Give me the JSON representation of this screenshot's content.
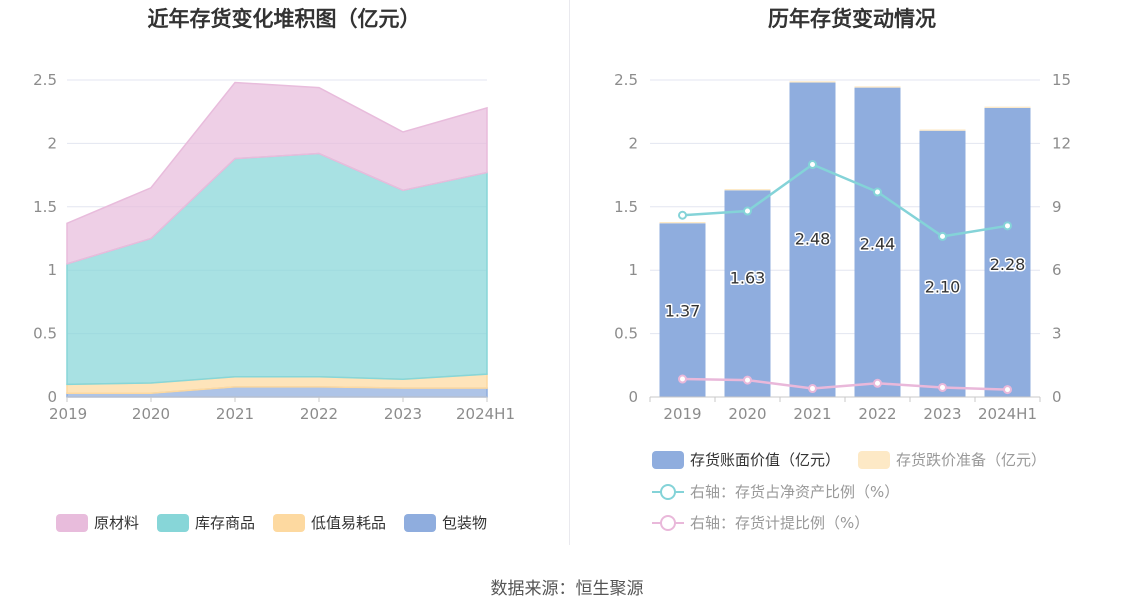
{
  "source_text": "数据来源：恒生聚源",
  "colors": {
    "raw_material": "#e8bcdc",
    "inventory_goods": "#87d6d8",
    "low_value": "#fdd9a0",
    "packaging": "#8fadde",
    "bar_book": "#8fadde",
    "bar_reserve": "#fde9c6",
    "line_ratio": "#84d3d8",
    "line_provision": "#e9b8da",
    "grid": "#e3e6f0",
    "axis": "#c8c8c8"
  },
  "chart_data": [
    {
      "type": "area",
      "title": "近年存货变化堆积图（亿元）",
      "categories": [
        "2019",
        "2020",
        "2021",
        "2022",
        "2023",
        "2024H1"
      ],
      "ylim": [
        0,
        2.5
      ],
      "yticks": [
        "0",
        "0.5",
        "1",
        "1.5",
        "2",
        "2.5"
      ],
      "stacked": true,
      "series": [
        {
          "name": "包装物",
          "color_key": "packaging",
          "values": [
            0.03,
            0.03,
            0.08,
            0.08,
            0.07,
            0.07
          ]
        },
        {
          "name": "低值易耗品",
          "color_key": "low_value",
          "values": [
            0.07,
            0.08,
            0.08,
            0.08,
            0.07,
            0.11
          ]
        },
        {
          "name": "库存商品",
          "color_key": "inventory_goods",
          "values": [
            0.95,
            1.14,
            1.72,
            1.76,
            1.49,
            1.59
          ]
        },
        {
          "name": "原材料",
          "color_key": "raw_material",
          "values": [
            0.32,
            0.4,
            0.6,
            0.52,
            0.46,
            0.51
          ]
        }
      ],
      "legend": [
        "原材料",
        "库存商品",
        "低值易耗品",
        "包装物"
      ],
      "legend_position": "bottom",
      "grid": true
    },
    {
      "type": "bar",
      "title": "历年存货变动情况",
      "categories": [
        "2019",
        "2020",
        "2021",
        "2022",
        "2023",
        "2024H1"
      ],
      "ylim": [
        0,
        2.5
      ],
      "yticks": [
        "0",
        "0.5",
        "1",
        "1.5",
        "2",
        "2.5"
      ],
      "y2lim": [
        0,
        15
      ],
      "y2ticks": [
        "0",
        "3",
        "6",
        "9",
        "12",
        "15"
      ],
      "series": [
        {
          "name": "存货账面价值（亿元）",
          "type": "bar",
          "axis": "left",
          "color_key": "bar_book",
          "values": [
            1.37,
            1.63,
            2.48,
            2.44,
            2.1,
            2.28
          ],
          "labels": [
            "1.37",
            "1.63",
            "2.48",
            "2.44",
            "2.10",
            "2.28"
          ]
        },
        {
          "name": "存货跌价准备（亿元）",
          "type": "bar",
          "axis": "left",
          "color_key": "bar_reserve",
          "values": [
            0.01,
            0.01,
            0.01,
            0.01,
            0.01,
            0.01
          ]
        },
        {
          "name": "右轴：存货占净资产比例（%）",
          "type": "line",
          "axis": "right",
          "color_key": "line_ratio",
          "values": [
            8.6,
            8.8,
            11.0,
            9.7,
            7.6,
            8.1
          ]
        },
        {
          "name": "右轴：存货计提比例（%）",
          "type": "line",
          "axis": "right",
          "color_key": "line_provision",
          "values": [
            0.85,
            0.8,
            0.4,
            0.65,
            0.45,
            0.35
          ]
        }
      ],
      "legend_position": "bottom",
      "grid": true
    }
  ]
}
